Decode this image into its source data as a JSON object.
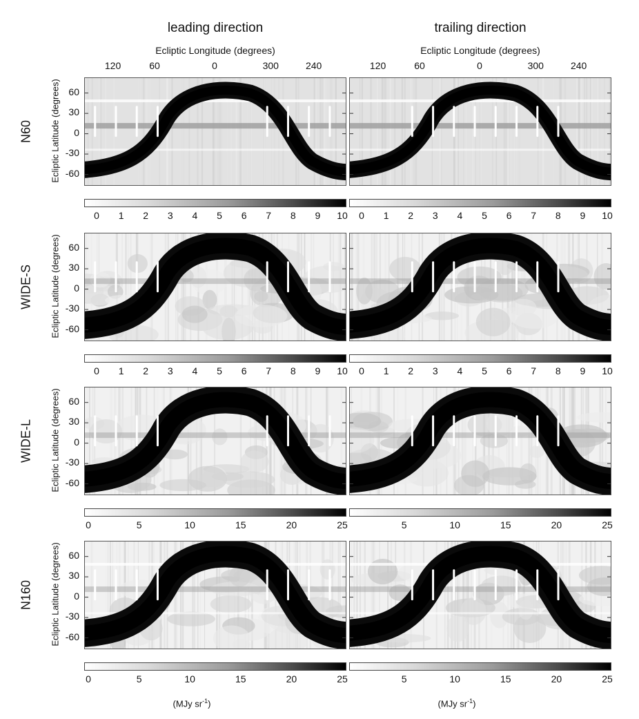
{
  "columns": [
    {
      "title": "leading direction",
      "xlabel": "Ecliptic Longitude (degrees)",
      "xticks": [
        "120",
        "60",
        "0",
        "300",
        "240"
      ]
    },
    {
      "title": "trailing direction",
      "xlabel": "Ecliptic Longitude (degrees)",
      "xticks": [
        "120",
        "60",
        "0",
        "300",
        "240"
      ]
    }
  ],
  "rows": [
    {
      "label": "N60",
      "ylabel": "Ecliptic Latitude (degrees)",
      "yticks": [
        "60",
        "30",
        "0",
        "-30",
        "-60"
      ],
      "colorbar_ticks": [
        "0",
        "1",
        "2",
        "3",
        "4",
        "5",
        "6",
        "7",
        "8",
        "9",
        "10"
      ]
    },
    {
      "label": "WIDE-S",
      "ylabel": "Ecliptic Latitude (degrees)",
      "yticks": [
        "60",
        "30",
        "0",
        "-30",
        "-60"
      ],
      "colorbar_ticks": [
        "0",
        "1",
        "2",
        "3",
        "4",
        "5",
        "6",
        "7",
        "8",
        "9",
        "10"
      ]
    },
    {
      "label": "WIDE-L",
      "ylabel": "Ecliptic Latitude (degrees)",
      "yticks": [
        "60",
        "30",
        "0",
        "-30",
        "-60"
      ],
      "colorbar_ticks": [
        "0",
        "5",
        "10",
        "15",
        "20",
        "25"
      ]
    },
    {
      "label": "N160",
      "ylabel": "Ecliptic Latitude (degrees)",
      "yticks": [
        "60",
        "30",
        "0",
        "-30",
        "-60"
      ],
      "colorbar_ticks": [
        "0",
        "5",
        "10",
        "15",
        "20",
        "25"
      ]
    }
  ],
  "unit_label": "(MJy sr",
  "unit_sup": "-1",
  "unit_close": ")",
  "colorbar_ranges": [
    [
      0,
      10
    ],
    [
      0,
      10
    ],
    [
      0,
      25
    ],
    [
      0,
      25
    ]
  ],
  "colormap": {
    "low": "#ffffff",
    "high": "#000000"
  }
}
